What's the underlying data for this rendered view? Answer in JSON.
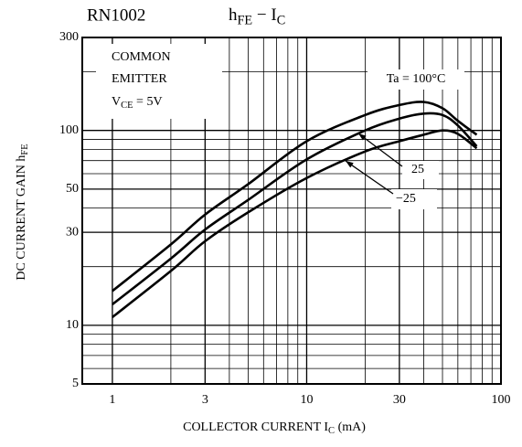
{
  "chart_data": {
    "type": "line",
    "title": "RN1002",
    "subtitle_parts": [
      {
        "text": "h"
      },
      {
        "text": "FE",
        "sub": true
      },
      {
        "text": " − I"
      },
      {
        "text": "C",
        "sub": true
      }
    ],
    "notes": [
      "COMMON",
      "EMITTER"
    ],
    "condition_parts": [
      {
        "text": "V"
      },
      {
        "text": "CE",
        "sub": true
      },
      {
        "text": " = 5V"
      }
    ],
    "xlabel_parts": [
      {
        "text": "COLLECTOR CURRENT  I"
      },
      {
        "text": "C",
        "sub": true
      },
      {
        "text": "   (mA)"
      }
    ],
    "ylabel_parts": [
      {
        "text": "DC CURRENT GAIN  h"
      },
      {
        "text": "FE",
        "sub": true
      }
    ],
    "x": [
      1,
      2,
      3,
      5,
      10,
      20,
      30,
      40,
      50,
      60,
      75
    ],
    "series": [
      {
        "name": "Ta = 100°C",
        "color": "#000000",
        "values": [
          15,
          26,
          37,
          53,
          88,
          120,
          135,
          140,
          130,
          112,
          95
        ]
      },
      {
        "name": "25",
        "color": "#000000",
        "values": [
          12.8,
          22,
          31,
          44,
          71,
          100,
          115,
          122,
          120,
          106,
          83
        ]
      },
      {
        "name": "−25",
        "color": "#000000",
        "values": [
          11,
          19,
          27,
          38,
          57,
          78,
          88,
          95,
          100,
          96,
          81
        ]
      }
    ],
    "xscale": "log",
    "yscale": "log",
    "xlim": [
      0.7,
      100
    ],
    "ylim": [
      5,
      300
    ],
    "xticks": [
      1,
      3,
      10,
      30,
      100
    ],
    "yticks": [
      5,
      10,
      30,
      50,
      100,
      300
    ],
    "xminor": [
      2,
      4,
      5,
      6,
      7,
      8,
      9,
      20,
      40,
      50,
      60,
      70,
      80,
      90
    ],
    "yminor": [
      6,
      7,
      8,
      9,
      20,
      40,
      60,
      70,
      80,
      90,
      200
    ],
    "grid": true
  }
}
